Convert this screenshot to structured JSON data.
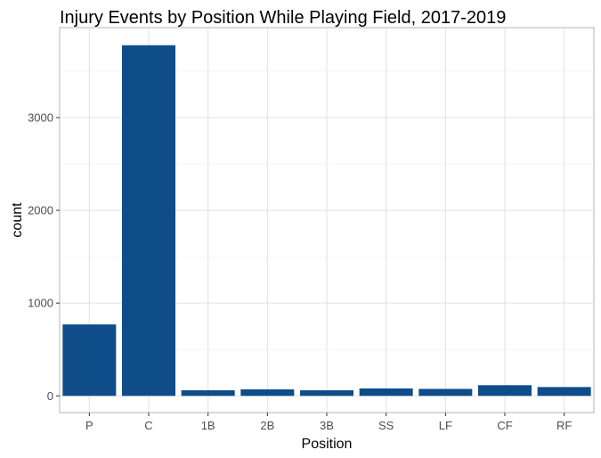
{
  "chart_data": {
    "type": "bar",
    "title": "Injury Events by Position While Playing Field, 2017-2019",
    "xlabel": "Position",
    "ylabel": "count",
    "categories": [
      "P",
      "C",
      "1B",
      "2B",
      "3B",
      "SS",
      "LF",
      "CF",
      "RF"
    ],
    "values": [
      770,
      3780,
      60,
      70,
      60,
      80,
      75,
      115,
      95
    ],
    "ylim": [
      -180,
      3970
    ],
    "yticks": [
      0,
      1000,
      2000,
      3000
    ],
    "ytick_labels": [
      "0",
      "1000",
      "2000",
      "3000"
    ],
    "grid": true,
    "legend": "none",
    "bar_color": "#0f4c8a"
  }
}
